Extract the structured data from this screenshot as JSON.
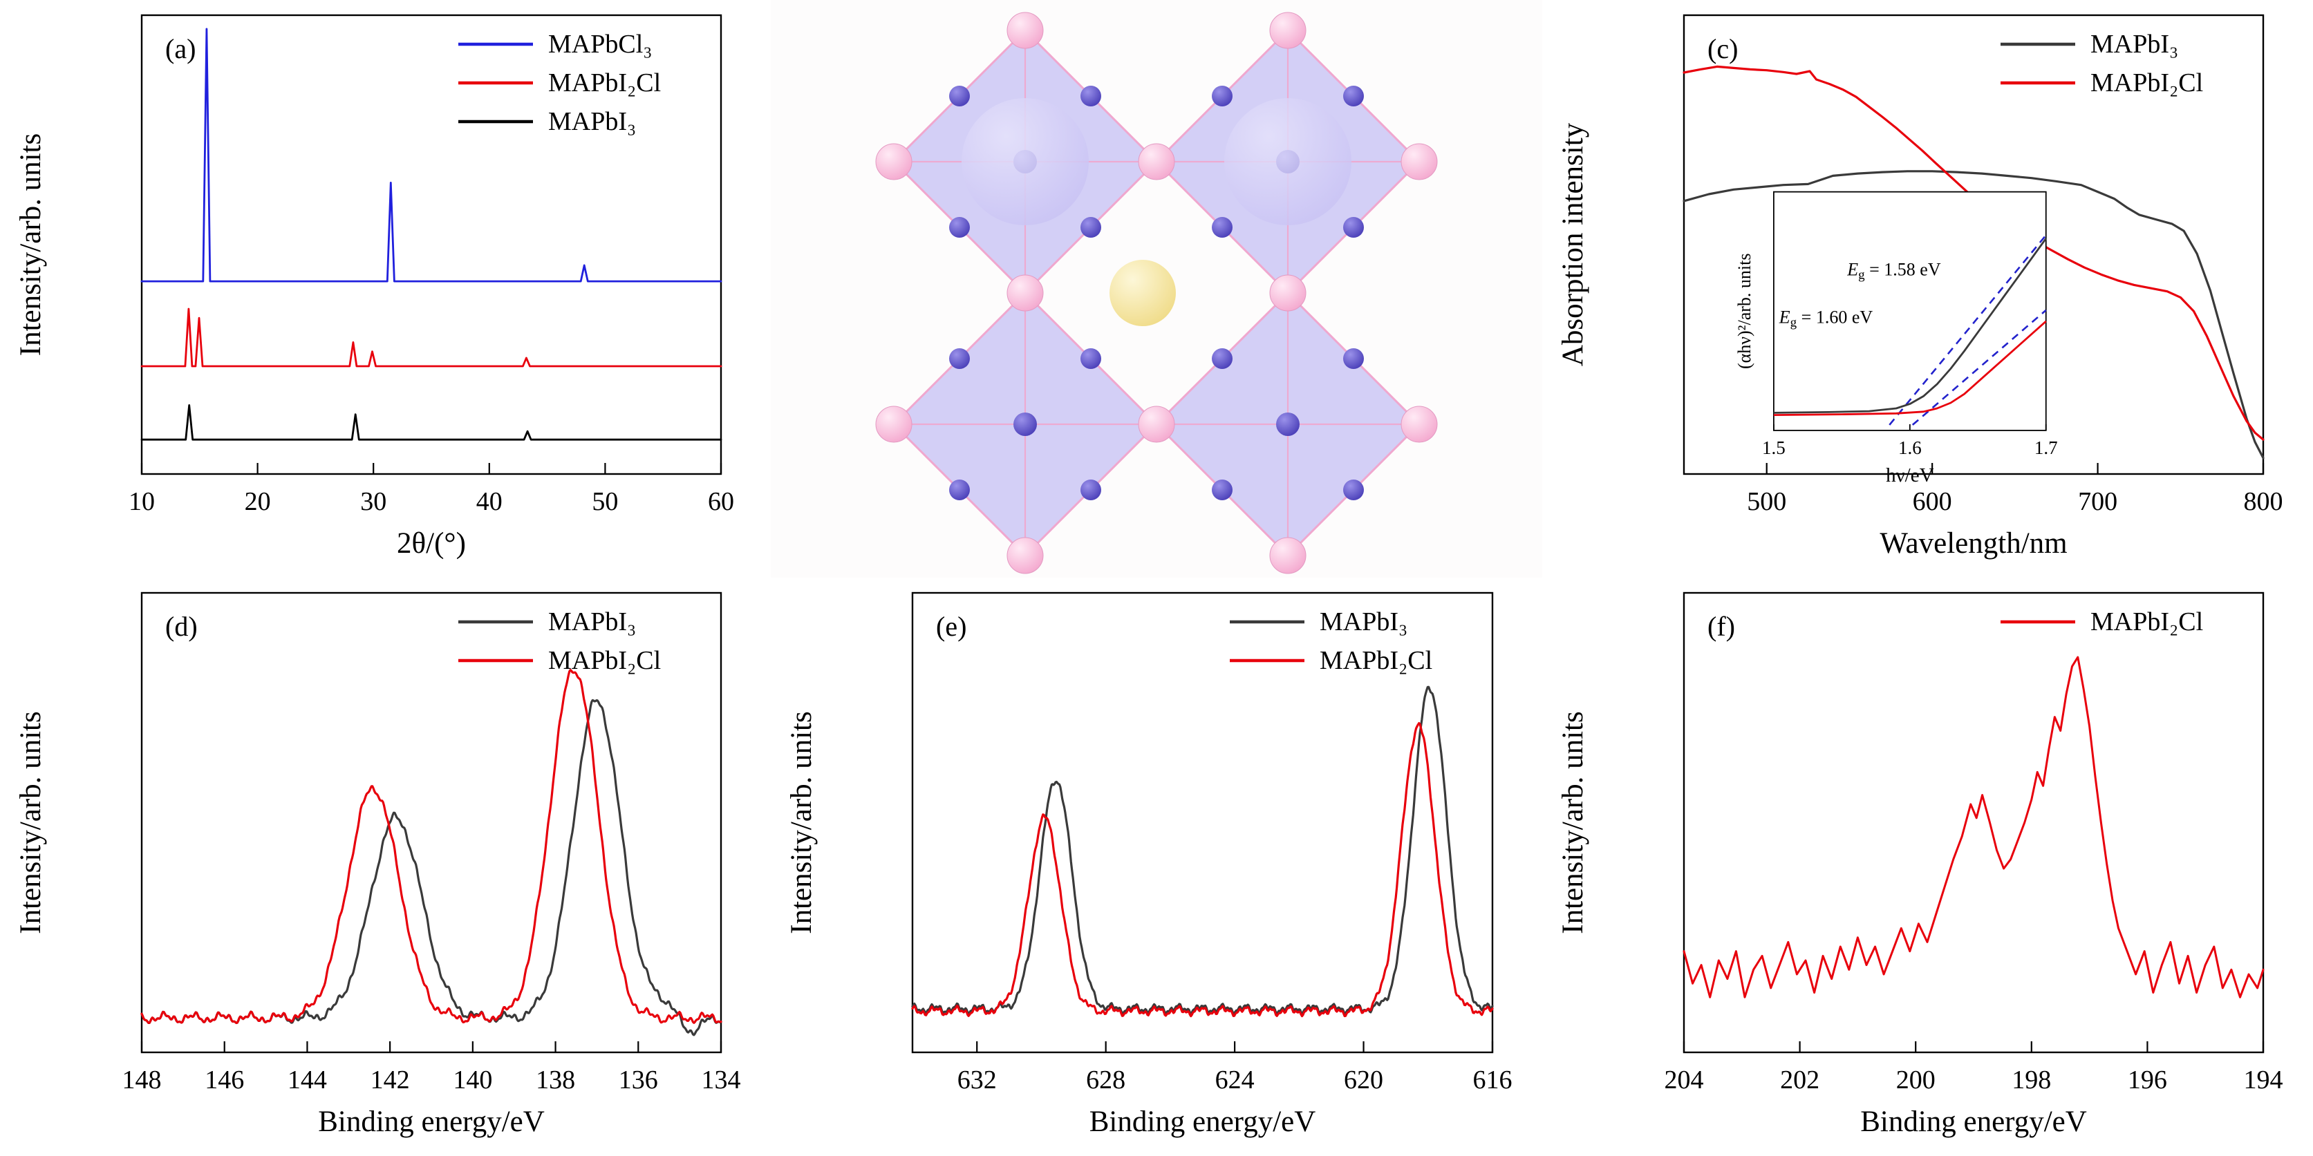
{
  "figure": {
    "background": "#ffffff",
    "panel_order": [
      "a",
      "b",
      "c",
      "d",
      "e",
      "f"
    ]
  },
  "chart_data": [
    {
      "id": "a",
      "type": "line",
      "panel_label": "(a)",
      "xlabel": "2θ/(°)",
      "ylabel": "Intensity/arb. units",
      "xlim": [
        10,
        60
      ],
      "xticks": [
        10,
        20,
        30,
        40,
        50,
        60
      ],
      "peak_width": 0.3,
      "legend": [
        {
          "name": "MAPbCl₃",
          "color": "#2020dd"
        },
        {
          "name": "MAPbI₂Cl",
          "color": "#e8000c"
        },
        {
          "name": "MAPbI₃",
          "color": "#000000"
        }
      ],
      "series": [
        {
          "name": "MAPbCl₃",
          "color": "#2020dd",
          "width": 2.8,
          "baseline": 0.42,
          "peaks": [
            {
              "x": 15.6,
              "h": 0.55
            },
            {
              "x": 31.5,
              "h": 0.215
            },
            {
              "x": 48.2,
              "h": 0.035
            }
          ]
        },
        {
          "name": "MAPbI₂Cl",
          "color": "#e8000c",
          "width": 2.8,
          "baseline": 0.235,
          "peaks": [
            {
              "x": 14.05,
              "h": 0.125
            },
            {
              "x": 14.95,
              "h": 0.105
            },
            {
              "x": 28.25,
              "h": 0.052
            },
            {
              "x": 29.9,
              "h": 0.032
            },
            {
              "x": 43.2,
              "h": 0.018
            }
          ]
        },
        {
          "name": "MAPbI₃",
          "color": "#000000",
          "width": 2.8,
          "baseline": 0.075,
          "peaks": [
            {
              "x": 14.1,
              "h": 0.075
            },
            {
              "x": 28.45,
              "h": 0.055
            },
            {
              "x": 43.3,
              "h": 0.018
            }
          ]
        }
      ]
    },
    {
      "id": "b",
      "type": "illustration",
      "description": "perovskite-crystal-structure",
      "colors": {
        "octahedron_fill": "#a9a2ef",
        "octahedron_edge": "#f0a7ce",
        "corner_atom": "#f4a9cf",
        "edge_atom": "#4a3fb8",
        "center_atom": "#f0dc8a",
        "large_atom": "#c9c3f4",
        "background": "#fdfcfc"
      }
    },
    {
      "id": "c",
      "type": "line",
      "panel_label": "(c)",
      "xlabel": "Wavelength/nm",
      "ylabel": "Absorption intensity",
      "xlim": [
        450,
        800
      ],
      "xticks": [
        500,
        600,
        700,
        800
      ],
      "legend": [
        {
          "name": "MAPbI₃",
          "color": "#3a3a3a"
        },
        {
          "name": "MAPbI₂Cl",
          "color": "#e8000c"
        }
      ],
      "series": [
        {
          "name": "MAPbI₃",
          "color": "#3a3a3a",
          "width": 3.2,
          "points": [
            [
              450,
              0.595
            ],
            [
              465,
              0.61
            ],
            [
              480,
              0.62
            ],
            [
              495,
              0.625
            ],
            [
              510,
              0.63
            ],
            [
              525,
              0.632
            ],
            [
              540,
              0.65
            ],
            [
              555,
              0.655
            ],
            [
              570,
              0.658
            ],
            [
              585,
              0.66
            ],
            [
              600,
              0.66
            ],
            [
              615,
              0.658
            ],
            [
              630,
              0.655
            ],
            [
              645,
              0.65
            ],
            [
              660,
              0.645
            ],
            [
              675,
              0.638
            ],
            [
              690,
              0.63
            ],
            [
              700,
              0.615
            ],
            [
              710,
              0.6
            ],
            [
              718,
              0.58
            ],
            [
              725,
              0.565
            ],
            [
              735,
              0.555
            ],
            [
              745,
              0.545
            ],
            [
              752,
              0.53
            ],
            [
              760,
              0.48
            ],
            [
              768,
              0.4
            ],
            [
              775,
              0.31
            ],
            [
              782,
              0.22
            ],
            [
              790,
              0.12
            ],
            [
              795,
              0.07
            ],
            [
              800,
              0.035
            ]
          ]
        },
        {
          "name": "MAPbI₂Cl",
          "color": "#e8000c",
          "width": 3.2,
          "points": [
            [
              450,
              0.875
            ],
            [
              460,
              0.882
            ],
            [
              470,
              0.888
            ],
            [
              480,
              0.885
            ],
            [
              490,
              0.882
            ],
            [
              500,
              0.88
            ],
            [
              510,
              0.876
            ],
            [
              518,
              0.872
            ],
            [
              526,
              0.878
            ],
            [
              530,
              0.86
            ],
            [
              538,
              0.85
            ],
            [
              546,
              0.838
            ],
            [
              554,
              0.822
            ],
            [
              562,
              0.8
            ],
            [
              570,
              0.778
            ],
            [
              578,
              0.755
            ],
            [
              586,
              0.73
            ],
            [
              594,
              0.705
            ],
            [
              602,
              0.678
            ],
            [
              612,
              0.645
            ],
            [
              622,
              0.612
            ],
            [
              632,
              0.582
            ],
            [
              642,
              0.555
            ],
            [
              652,
              0.53
            ],
            [
              662,
              0.508
            ],
            [
              672,
              0.488
            ],
            [
              682,
              0.468
            ],
            [
              692,
              0.45
            ],
            [
              702,
              0.435
            ],
            [
              712,
              0.422
            ],
            [
              722,
              0.412
            ],
            [
              732,
              0.405
            ],
            [
              742,
              0.398
            ],
            [
              750,
              0.385
            ],
            [
              758,
              0.355
            ],
            [
              766,
              0.3
            ],
            [
              774,
              0.235
            ],
            [
              782,
              0.17
            ],
            [
              790,
              0.115
            ],
            [
              795,
              0.09
            ],
            [
              800,
              0.075
            ]
          ]
        }
      ],
      "inset": {
        "xlabel": "hν/eV",
        "ylabel": "(αhν)²/arb. units",
        "xlim": [
          1.5,
          1.7
        ],
        "xticks": [
          1.5,
          1.6,
          1.7
        ],
        "annotations": [
          {
            "text": "E_g = 1.58 eV",
            "color": "#000000",
            "fx": 0.27,
            "fy": 0.35
          },
          {
            "text": "E_g = 1.60 eV",
            "color": "#e8000c",
            "fx": 0.02,
            "fy": 0.55
          }
        ],
        "tangents": [
          {
            "color": "#2222cc",
            "x1": 1.585,
            "y1": 0,
            "x2": 1.7,
            "y2": 0.86
          },
          {
            "color": "#2222cc",
            "x1": 1.602,
            "y1": 0,
            "x2": 1.7,
            "y2": 0.52
          }
        ],
        "series": [
          {
            "name": "MAPbI₃",
            "color": "#3a3a3a",
            "points": [
              [
                1.5,
                0.055
              ],
              [
                1.54,
                0.058
              ],
              [
                1.57,
                0.062
              ],
              [
                1.59,
                0.075
              ],
              [
                1.6,
                0.095
              ],
              [
                1.61,
                0.13
              ],
              [
                1.62,
                0.185
              ],
              [
                1.63,
                0.255
              ],
              [
                1.64,
                0.335
              ],
              [
                1.65,
                0.42
              ],
              [
                1.66,
                0.505
              ],
              [
                1.67,
                0.59
              ],
              [
                1.68,
                0.675
              ],
              [
                1.69,
                0.76
              ],
              [
                1.7,
                0.845
              ]
            ]
          },
          {
            "name": "MAPbI₂Cl",
            "color": "#e8000c",
            "points": [
              [
                1.5,
                0.045
              ],
              [
                1.55,
                0.048
              ],
              [
                1.59,
                0.052
              ],
              [
                1.61,
                0.06
              ],
              [
                1.62,
                0.075
              ],
              [
                1.63,
                0.1
              ],
              [
                1.64,
                0.14
              ],
              [
                1.66,
                0.25
              ],
              [
                1.68,
                0.36
              ],
              [
                1.7,
                0.47
              ]
            ]
          }
        ]
      }
    },
    {
      "id": "d",
      "type": "line",
      "panel_label": "(d)",
      "xlabel": "Binding energy/eV",
      "ylabel": "Intensity/arb. units",
      "xlim": [
        148,
        134
      ],
      "xticks": [
        148,
        146,
        144,
        142,
        140,
        138,
        136,
        134
      ],
      "legend": [
        {
          "name": "MAPbI₃",
          "color": "#3a3a3a"
        },
        {
          "name": "MAPbI₂Cl",
          "color": "#e8000c"
        }
      ],
      "series": [
        {
          "name": "MAPbI₃",
          "color": "#3a3a3a",
          "width": 3.2,
          "baseline": 0.075,
          "noise": 0.007,
          "gaussians": [
            {
              "x": 141.85,
              "h": 0.435,
              "w": 0.62
            },
            {
              "x": 137.0,
              "h": 0.69,
              "w": 0.58
            },
            {
              "x": 135.4,
              "h": 0.03,
              "w": 0.3
            },
            {
              "x": 134.75,
              "h": -0.03,
              "w": 0.25
            }
          ]
        },
        {
          "name": "MAPbI₂Cl",
          "color": "#e8000c",
          "width": 3.2,
          "baseline": 0.075,
          "noise": 0.007,
          "gaussians": [
            {
              "x": 142.4,
              "h": 0.5,
              "w": 0.62
            },
            {
              "x": 137.55,
              "h": 0.76,
              "w": 0.58
            }
          ]
        }
      ]
    },
    {
      "id": "e",
      "type": "line",
      "panel_label": "(e)",
      "xlabel": "Binding energy/eV",
      "ylabel": "Intensity/arb. units",
      "xlim": [
        634,
        616
      ],
      "xticks": [
        632,
        628,
        624,
        620,
        616
      ],
      "legend": [
        {
          "name": "MAPbI₃",
          "color": "#3a3a3a"
        },
        {
          "name": "MAPbI₂Cl",
          "color": "#e8000c"
        }
      ],
      "series": [
        {
          "name": "MAPbI₃",
          "color": "#3a3a3a",
          "width": 3.2,
          "baseline": 0.095,
          "noise": 0.006,
          "gaussians": [
            {
              "x": 629.55,
              "h": 0.5,
              "w": 0.5
            },
            {
              "x": 617.95,
              "h": 0.7,
              "w": 0.52
            }
          ]
        },
        {
          "name": "MAPbI₂Cl",
          "color": "#e8000c",
          "width": 3.2,
          "baseline": 0.09,
          "noise": 0.006,
          "gaussians": [
            {
              "x": 629.9,
              "h": 0.42,
              "w": 0.5
            },
            {
              "x": 618.3,
              "h": 0.62,
              "w": 0.52
            }
          ]
        }
      ]
    },
    {
      "id": "f",
      "type": "line",
      "panel_label": "(f)",
      "xlabel": "Binding energy/eV",
      "ylabel": "Intensity/arb. units",
      "xlim": [
        204,
        194
      ],
      "xticks": [
        204,
        202,
        200,
        198,
        196,
        194
      ],
      "legend": [
        {
          "name": "MAPbI₂Cl",
          "color": "#e8000c"
        }
      ],
      "series": [
        {
          "name": "MAPbI₂Cl",
          "color": "#e8000c",
          "width": 3.0,
          "points": [
            [
              204.0,
              0.22
            ],
            [
              203.85,
              0.15
            ],
            [
              203.7,
              0.19
            ],
            [
              203.55,
              0.12
            ],
            [
              203.4,
              0.2
            ],
            [
              203.25,
              0.16
            ],
            [
              203.1,
              0.22
            ],
            [
              202.95,
              0.12
            ],
            [
              202.8,
              0.18
            ],
            [
              202.65,
              0.21
            ],
            [
              202.5,
              0.14
            ],
            [
              202.35,
              0.19
            ],
            [
              202.2,
              0.24
            ],
            [
              202.05,
              0.17
            ],
            [
              201.9,
              0.2
            ],
            [
              201.75,
              0.13
            ],
            [
              201.6,
              0.21
            ],
            [
              201.45,
              0.16
            ],
            [
              201.3,
              0.23
            ],
            [
              201.15,
              0.18
            ],
            [
              201.0,
              0.25
            ],
            [
              200.85,
              0.19
            ],
            [
              200.7,
              0.23
            ],
            [
              200.55,
              0.17
            ],
            [
              200.4,
              0.22
            ],
            [
              200.25,
              0.27
            ],
            [
              200.1,
              0.22
            ],
            [
              199.95,
              0.28
            ],
            [
              199.8,
              0.24
            ],
            [
              199.65,
              0.3
            ],
            [
              199.5,
              0.36
            ],
            [
              199.35,
              0.42
            ],
            [
              199.2,
              0.47
            ],
            [
              199.05,
              0.54
            ],
            [
              198.95,
              0.51
            ],
            [
              198.85,
              0.56
            ],
            [
              198.72,
              0.5
            ],
            [
              198.6,
              0.44
            ],
            [
              198.48,
              0.4
            ],
            [
              198.36,
              0.42
            ],
            [
              198.24,
              0.46
            ],
            [
              198.12,
              0.5
            ],
            [
              198.0,
              0.55
            ],
            [
              197.9,
              0.61
            ],
            [
              197.8,
              0.58
            ],
            [
              197.7,
              0.66
            ],
            [
              197.6,
              0.73
            ],
            [
              197.5,
              0.7
            ],
            [
              197.4,
              0.78
            ],
            [
              197.3,
              0.84
            ],
            [
              197.2,
              0.86
            ],
            [
              197.1,
              0.79
            ],
            [
              197.0,
              0.71
            ],
            [
              196.9,
              0.6
            ],
            [
              196.8,
              0.5
            ],
            [
              196.7,
              0.41
            ],
            [
              196.6,
              0.33
            ],
            [
              196.5,
              0.27
            ],
            [
              196.35,
              0.22
            ],
            [
              196.2,
              0.17
            ],
            [
              196.05,
              0.22
            ],
            [
              195.9,
              0.13
            ],
            [
              195.75,
              0.19
            ],
            [
              195.6,
              0.24
            ],
            [
              195.45,
              0.15
            ],
            [
              195.3,
              0.21
            ],
            [
              195.15,
              0.13
            ],
            [
              195.0,
              0.19
            ],
            [
              194.85,
              0.23
            ],
            [
              194.7,
              0.14
            ],
            [
              194.55,
              0.18
            ],
            [
              194.4,
              0.12
            ],
            [
              194.25,
              0.17
            ],
            [
              194.1,
              0.14
            ],
            [
              194.0,
              0.18
            ]
          ]
        }
      ]
    }
  ]
}
